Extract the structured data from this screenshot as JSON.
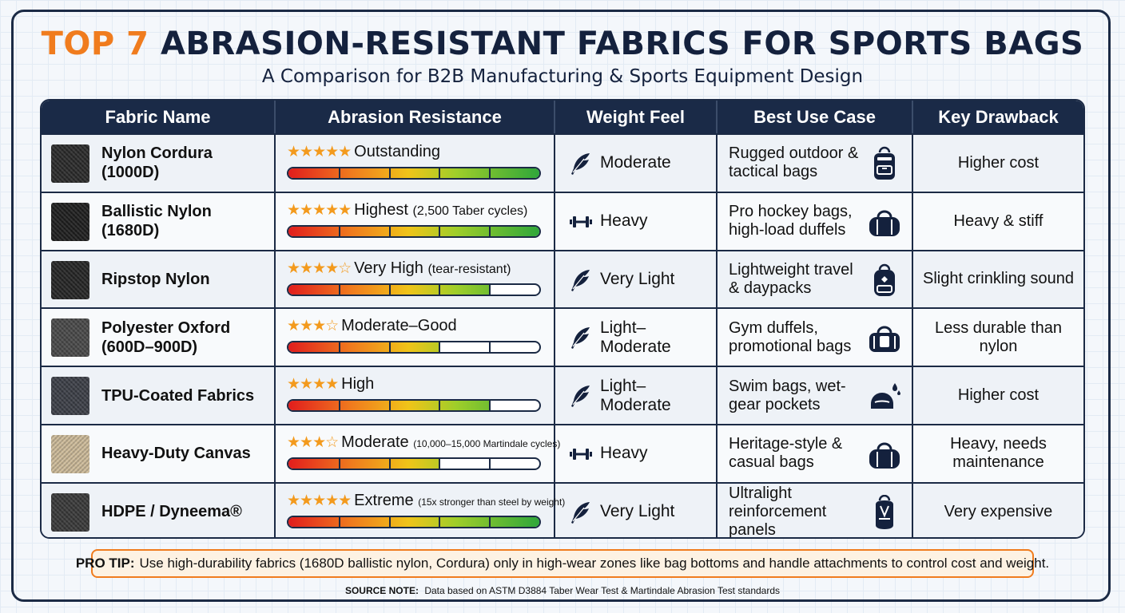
{
  "title": {
    "accent": "TOP 7",
    "rest": "ABRASION-RESISTANT FABRICS FOR SPORTS BAGS"
  },
  "subtitle": "A Comparison for B2B Manufacturing & Sports Equipment Design",
  "headers": [
    "Fabric Name",
    "Abrasion Resistance",
    "Weight Feel",
    "Best Use Case",
    "Key Drawback"
  ],
  "rows": [
    {
      "name": "Nylon Cordura (1000D)",
      "swatch": "#2b2b2b",
      "stars": "★★★★★",
      "rating": "Outstanding",
      "note": "",
      "fill": 1.0,
      "weight_icon": "feather-icon",
      "weight": "Moderate",
      "use": "Rugged outdoor & tactical bags",
      "use_icon": "backpack-icon",
      "drawback": "Higher cost"
    },
    {
      "name": "Ballistic Nylon (1680D)",
      "swatch": "#1f1f1f",
      "stars": "★★★★★",
      "rating": "Highest",
      "note": "(2,500 Taber cycles)",
      "fill": 1.0,
      "weight_icon": "dumbbell-icon",
      "weight": "Heavy",
      "use": "Pro hockey bags, high-load duffels",
      "use_icon": "duffel-bag-icon",
      "drawback": "Heavy & stiff"
    },
    {
      "name": "Ripstop Nylon",
      "swatch": "#262626",
      "stars": "★★★★☆",
      "rating": "Very High",
      "note": "(tear-resistant)",
      "fill": 0.8,
      "weight_icon": "feather-icon",
      "weight": "Very Light",
      "use": "Lightweight travel & daypacks",
      "use_icon": "daypack-icon",
      "drawback": "Slight crinkling sound"
    },
    {
      "name": "Polyester Oxford (600D–900D)",
      "swatch": "#4a4a4a",
      "stars": "★★★☆",
      "rating": "Moderate–Good",
      "note": "",
      "fill": 0.6,
      "weight_icon": "feather-icon",
      "weight": "Light–Moderate",
      "use": "Gym duffels, promotional bags",
      "use_icon": "gym-bag-icon",
      "drawback": "Less durable than nylon"
    },
    {
      "name": "TPU-Coated Fabrics",
      "swatch": "#3d4048",
      "stars": "★★★★",
      "rating": "High",
      "note": "",
      "fill": 0.8,
      "weight_icon": "feather-icon",
      "weight": "Light–Moderate",
      "use": "Swim bags, wet-gear pockets",
      "use_icon": "wet-bag-icon",
      "drawback": "Higher cost"
    },
    {
      "name": "Heavy-Duty Canvas",
      "swatch": "#cdbb9a",
      "stars": "★★★☆",
      "rating": "Moderate",
      "note": "(10,000–15,000 Martindale cycles)",
      "fill": 0.6,
      "weight_icon": "dumbbell-icon",
      "weight": "Heavy",
      "use": "Heritage-style & casual bags",
      "use_icon": "duffel-bag-icon",
      "drawback": "Heavy, needs maintenance"
    },
    {
      "name": "HDPE / Dyneema®",
      "swatch": "#3a3a3a",
      "stars": "★★★★★",
      "rating": "Extreme",
      "note": "(15x stronger than steel by weight)",
      "fill": 1.0,
      "weight_icon": "feather-icon",
      "weight": "Very Light",
      "use": "Ultralight reinforcement panels",
      "use_icon": "ultralight-pack-icon",
      "drawback": "Very expensive"
    }
  ],
  "protip": {
    "label": "PRO TIP:",
    "text": "Use high-durability fabrics (1680D ballistic nylon, Cordura) only in high-wear zones like bag bottoms and handle attachments to control cost and weight."
  },
  "source": {
    "label": "SOURCE NOTE:",
    "text": "Data based on ASTM D3884 Taber Wear Test & Martindale Abrasion Test standards"
  }
}
